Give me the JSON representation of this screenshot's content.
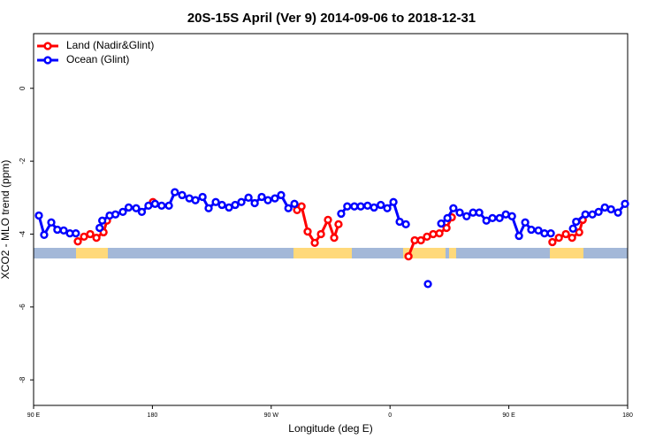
{
  "chart_data": {
    "type": "line",
    "title": "20S-15S April (Ver 9)   2014-09-06 to 2018-12-31",
    "xlabel": "Longitude (deg E)",
    "ylabel": "XCO2 - MLO trend (ppm)",
    "xlim": [
      90,
      540
    ],
    "ylim": [
      -8.7,
      1.5
    ],
    "xticks": [
      {
        "value": 90,
        "label": "90 E"
      },
      180,
      {
        "value": 270,
        "label": "90 W"
      },
      {
        "value": 360,
        "label": "0"
      },
      {
        "value": 450,
        "label": "90 E"
      },
      {
        "value": 540,
        "label": "180"
      }
    ],
    "yticks": [
      0,
      -2,
      -4,
      -6,
      -8
    ],
    "legend": "top-left",
    "series": [
      {
        "name": "Land (Nadir&Glint)",
        "color": "#ff0000",
        "x": [
          123.5,
          128.2,
          132.9,
          137.6,
          143,
          145.6,
          180.4,
          289.6,
          293,
          297.6,
          303,
          307.7,
          313,
          317.7,
          321,
          374,
          378.7,
          383.4,
          388,
          392.7,
          397.4,
          402.8,
          406.8,
          483,
          487.9,
          493.2,
          497.9,
          503.3,
          506
        ],
        "values": [
          -4.2,
          -4.07,
          -4.0,
          -4.1,
          -3.95,
          -3.63,
          -3.12,
          -3.34,
          -3.24,
          -3.93,
          -4.24,
          -4.0,
          -3.61,
          -4.1,
          -3.73,
          -4.61,
          -4.17,
          -4.17,
          -4.07,
          -4.0,
          -3.98,
          -3.83,
          -3.54,
          -4.22,
          -4.1,
          -4.0,
          -4.1,
          -3.95,
          -3.61
        ]
      },
      {
        "name": "Ocean (Glint)",
        "color": "#0000ff",
        "x": [
          94,
          98,
          103.4,
          108,
          112.8,
          117.5,
          122,
          140,
          142,
          147.6,
          152,
          157.6,
          162,
          167.7,
          172,
          177,
          182,
          187,
          192.5,
          197,
          202.5,
          208,
          212.6,
          218,
          222.6,
          228,
          232.7,
          238,
          242.7,
          247.4,
          252.8,
          257.5,
          262.8,
          267.5,
          272.8,
          277.5,
          283,
          287.6,
          323,
          327.6,
          333,
          337.8,
          343,
          347.9,
          353,
          357.9,
          362.6,
          367.3,
          372,
          388.7,
          398.8,
          403.5,
          408,
          412.8,
          418,
          422.9,
          427.6,
          433,
          437.6,
          443,
          447.7,
          452.4,
          457.7,
          462.4,
          467,
          472.4,
          477,
          481.8,
          498.6,
          501,
          508,
          513.3,
          518,
          522.7,
          527.4,
          532.7,
          538
        ],
        "values": [
          -3.49,
          -4.02,
          -3.68,
          -3.88,
          -3.9,
          -3.98,
          -3.98,
          -3.83,
          -3.63,
          -3.49,
          -3.46,
          -3.39,
          -3.27,
          -3.29,
          -3.39,
          -3.22,
          -3.17,
          -3.22,
          -3.22,
          -2.85,
          -2.93,
          -3.02,
          -3.07,
          -2.98,
          -3.29,
          -3.12,
          -3.2,
          -3.27,
          -3.2,
          -3.12,
          -3.0,
          -3.15,
          -2.98,
          -3.07,
          -3.02,
          -2.93,
          -3.29,
          -3.17,
          -3.44,
          -3.24,
          -3.24,
          -3.24,
          -3.22,
          -3.27,
          -3.2,
          -3.29,
          -3.12,
          -3.66,
          -3.73,
          -5.37,
          -3.71,
          -3.56,
          -3.29,
          -3.41,
          -3.51,
          -3.41,
          -3.41,
          -3.63,
          -3.56,
          -3.56,
          -3.46,
          -3.51,
          -4.05,
          -3.68,
          -3.88,
          -3.9,
          -3.98,
          -3.98,
          -3.85,
          -3.66,
          -3.46,
          -3.46,
          -3.39,
          -3.27,
          -3.32,
          -3.41,
          -3.17
        ]
      }
    ]
  }
}
